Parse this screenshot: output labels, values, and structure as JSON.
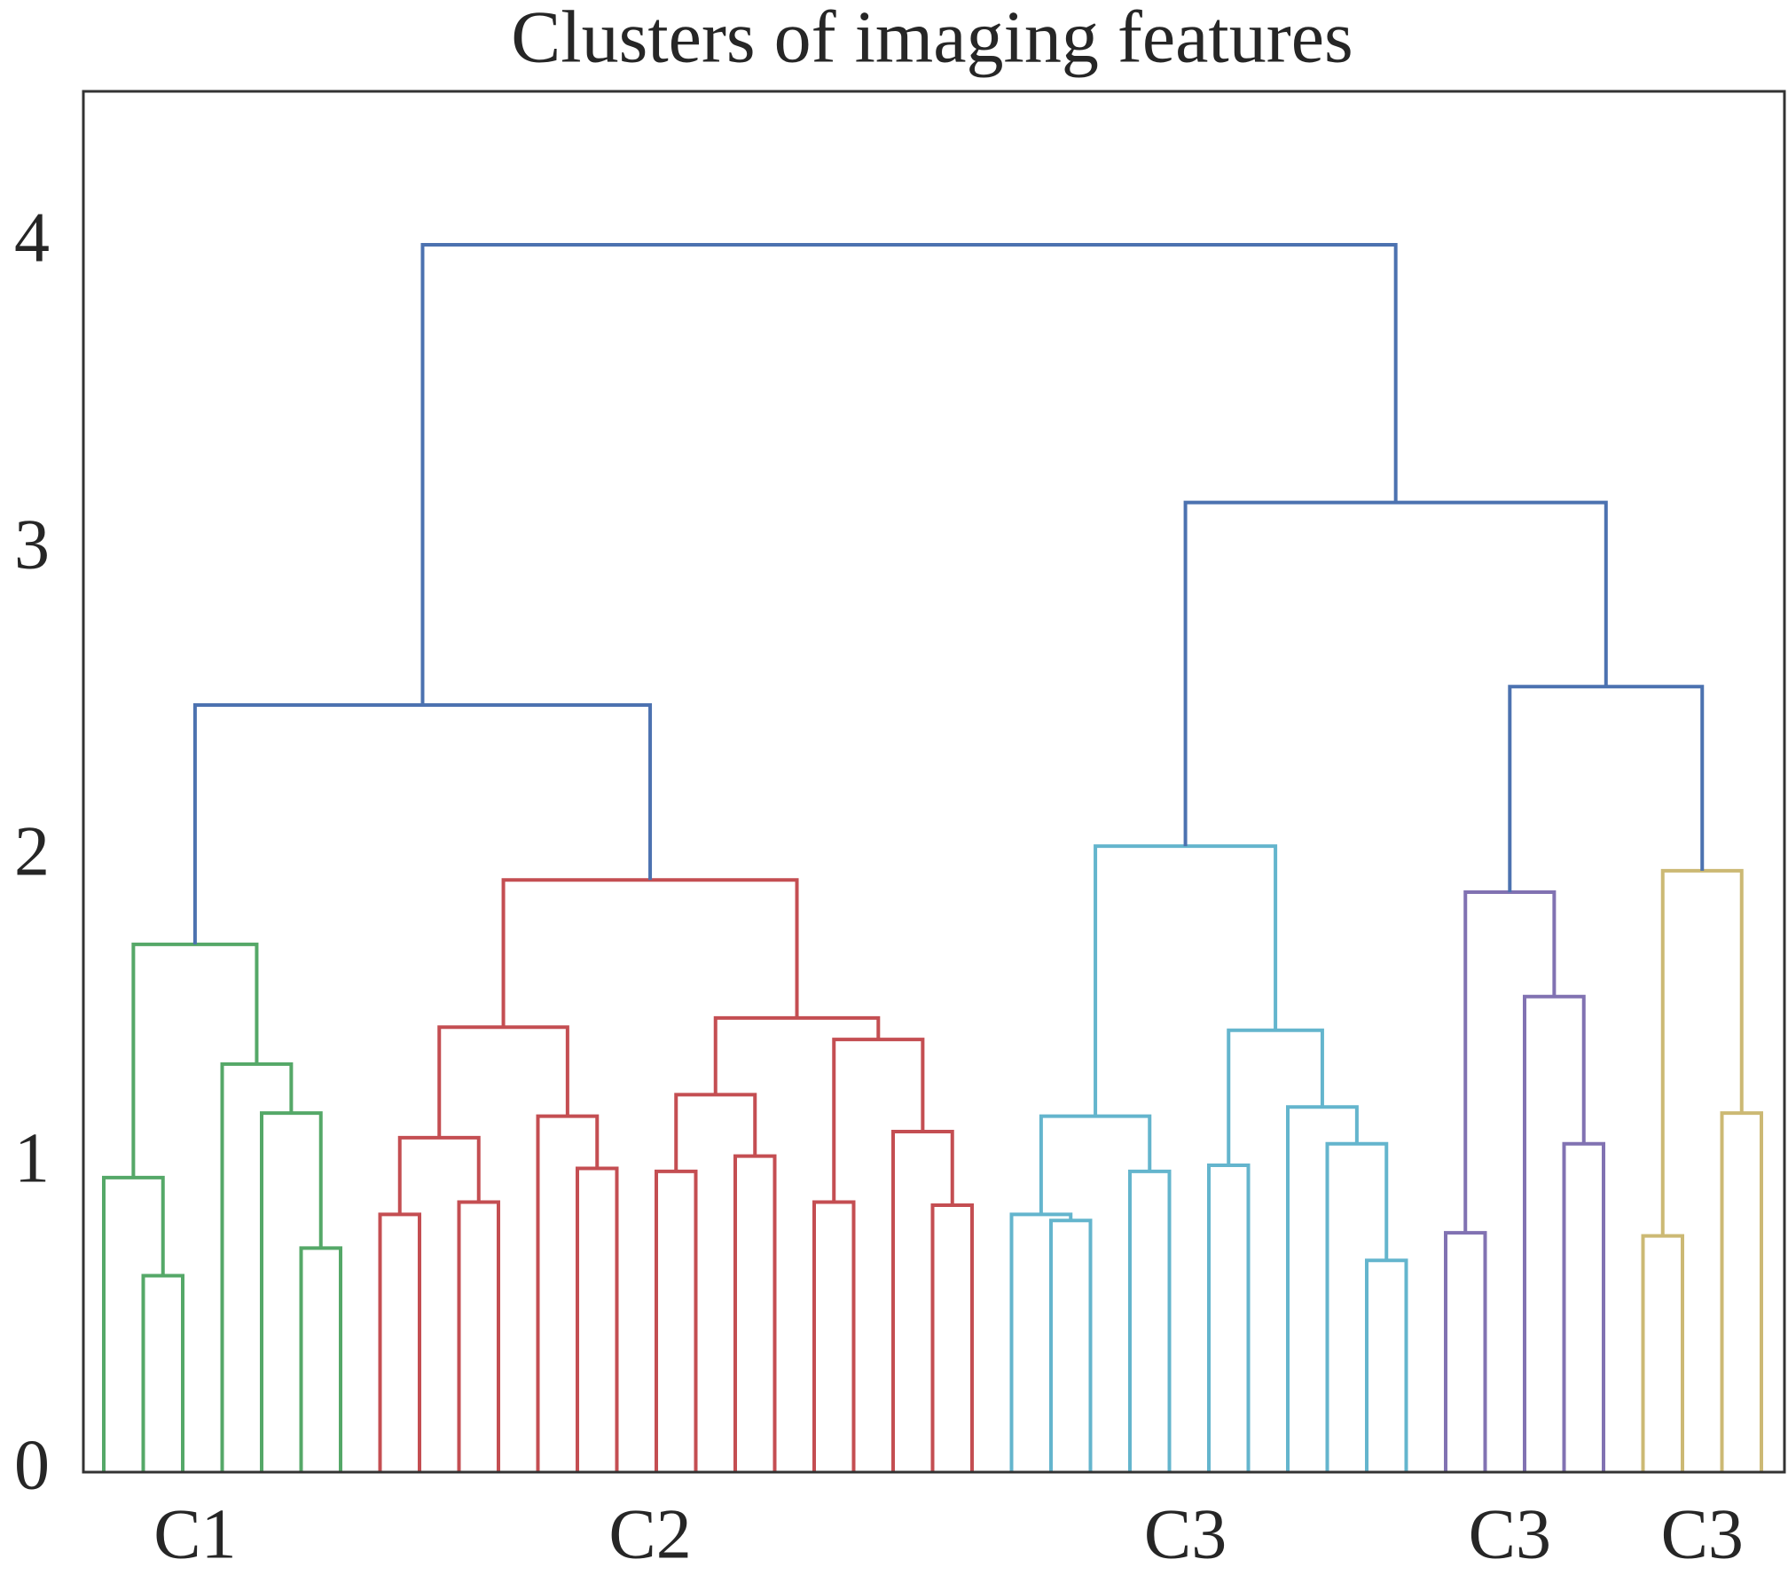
{
  "chart_data": {
    "type": "dendrogram",
    "title": "Clusters of imaging features",
    "leaf_count": 43,
    "ylim": [
      0,
      4.5
    ],
    "yticks": [
      0,
      1,
      2,
      3,
      4
    ],
    "grid": false,
    "links": [
      {
        "pair": [
          1,
          2
        ],
        "height": 0.64,
        "color": "#55a868"
      },
      {
        "pair": [
          0,
          43
        ],
        "height": 0.96,
        "color": "#55a868"
      },
      {
        "pair": [
          5,
          6
        ],
        "height": 0.73,
        "color": "#55a868"
      },
      {
        "pair": [
          4,
          45
        ],
        "height": 1.17,
        "color": "#55a868"
      },
      {
        "pair": [
          3,
          46
        ],
        "height": 1.33,
        "color": "#55a868"
      },
      {
        "pair": [
          44,
          47
        ],
        "height": 1.72,
        "color": "#55a868"
      },
      {
        "pair": [
          7,
          8
        ],
        "height": 0.84,
        "color": "#c44e52"
      },
      {
        "pair": [
          9,
          10
        ],
        "height": 0.88,
        "color": "#c44e52"
      },
      {
        "pair": [
          49,
          50
        ],
        "height": 1.09,
        "color": "#c44e52"
      },
      {
        "pair": [
          12,
          13
        ],
        "height": 0.99,
        "color": "#c44e52"
      },
      {
        "pair": [
          11,
          52
        ],
        "height": 1.16,
        "color": "#c44e52"
      },
      {
        "pair": [
          51,
          53
        ],
        "height": 1.45,
        "color": "#c44e52"
      },
      {
        "pair": [
          14,
          15
        ],
        "height": 0.98,
        "color": "#c44e52"
      },
      {
        "pair": [
          16,
          17
        ],
        "height": 1.03,
        "color": "#c44e52"
      },
      {
        "pair": [
          55,
          56
        ],
        "height": 1.23,
        "color": "#c44e52"
      },
      {
        "pair": [
          18,
          19
        ],
        "height": 0.88,
        "color": "#c44e52"
      },
      {
        "pair": [
          21,
          22
        ],
        "height": 0.87,
        "color": "#c44e52"
      },
      {
        "pair": [
          20,
          59
        ],
        "height": 1.11,
        "color": "#c44e52"
      },
      {
        "pair": [
          58,
          60
        ],
        "height": 1.41,
        "color": "#c44e52"
      },
      {
        "pair": [
          57,
          61
        ],
        "height": 1.48,
        "color": "#c44e52"
      },
      {
        "pair": [
          54,
          62
        ],
        "height": 1.93,
        "color": "#c44e52"
      },
      {
        "pair": [
          48,
          63
        ],
        "height": 2.5,
        "color": "#4c72b0"
      },
      {
        "pair": [
          24,
          25
        ],
        "height": 0.82,
        "color": "#64b5cd"
      },
      {
        "pair": [
          23,
          65
        ],
        "height": 0.84,
        "color": "#64b5cd"
      },
      {
        "pair": [
          26,
          27
        ],
        "height": 0.98,
        "color": "#64b5cd"
      },
      {
        "pair": [
          66,
          67
        ],
        "height": 1.16,
        "color": "#64b5cd"
      },
      {
        "pair": [
          28,
          29
        ],
        "height": 1.0,
        "color": "#64b5cd"
      },
      {
        "pair": [
          32,
          33
        ],
        "height": 0.69,
        "color": "#64b5cd"
      },
      {
        "pair": [
          31,
          70
        ],
        "height": 1.07,
        "color": "#64b5cd"
      },
      {
        "pair": [
          30,
          71
        ],
        "height": 1.19,
        "color": "#64b5cd"
      },
      {
        "pair": [
          69,
          72
        ],
        "height": 1.44,
        "color": "#64b5cd"
      },
      {
        "pair": [
          68,
          73
        ],
        "height": 2.04,
        "color": "#64b5cd"
      },
      {
        "pair": [
          34,
          35
        ],
        "height": 0.78,
        "color": "#8172b2"
      },
      {
        "pair": [
          37,
          38
        ],
        "height": 1.07,
        "color": "#8172b2"
      },
      {
        "pair": [
          36,
          76
        ],
        "height": 1.55,
        "color": "#8172b2"
      },
      {
        "pair": [
          75,
          77
        ],
        "height": 1.89,
        "color": "#8172b2"
      },
      {
        "pair": [
          39,
          40
        ],
        "height": 0.77,
        "color": "#ccb974"
      },
      {
        "pair": [
          41,
          42
        ],
        "height": 1.17,
        "color": "#ccb974"
      },
      {
        "pair": [
          79,
          80
        ],
        "height": 1.96,
        "color": "#ccb974"
      },
      {
        "pair": [
          78,
          81
        ],
        "height": 2.56,
        "color": "#4c72b0"
      },
      {
        "pair": [
          74,
          82
        ],
        "height": 3.16,
        "color": "#4c72b0"
      },
      {
        "pair": [
          64,
          83
        ],
        "height": 4.0,
        "color": "#4c72b0"
      }
    ],
    "cluster_labels": [
      {
        "text": "C1",
        "link": 5
      },
      {
        "text": "C2",
        "link": 20
      },
      {
        "text": "C3",
        "link": 31
      },
      {
        "text": "C3",
        "link": 35
      },
      {
        "text": "C3",
        "link": 38
      }
    ]
  }
}
